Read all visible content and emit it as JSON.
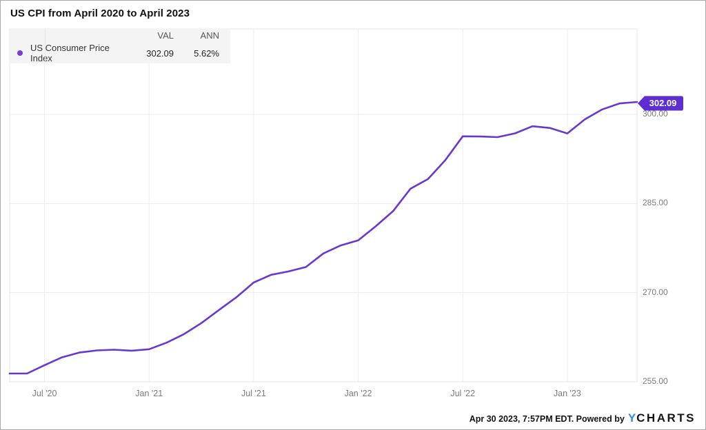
{
  "title": "US CPI from April 2020 to April 2023",
  "legend": {
    "val_header": "VAL",
    "ann_header": "ANN",
    "series_label": "US Consumer Price Index",
    "val": "302.09",
    "ann": "5.62%"
  },
  "end_value_label": "302.09",
  "footer": {
    "timestamp": "Apr 30 2023, 7:57PM EDT. Powered by",
    "logo_y": "Y",
    "logo_rest": "CHARTS"
  },
  "colors": {
    "line": "#6638d0",
    "badge": "#5e2ed2",
    "legend_dot": "#7c3ad9",
    "logo_blue": "#2e90d6",
    "grid": "#ececec",
    "plot_border": "#e6e6e6"
  },
  "chart_data": {
    "type": "line",
    "title": "US CPI from April 2020 to April 2023",
    "series_name": "US Consumer Price Index",
    "x": [
      "2020-04",
      "2020-05",
      "2020-06",
      "2020-07",
      "2020-08",
      "2020-09",
      "2020-10",
      "2020-11",
      "2020-12",
      "2021-01",
      "2021-02",
      "2021-03",
      "2021-04",
      "2021-05",
      "2021-06",
      "2021-07",
      "2021-08",
      "2021-09",
      "2021-10",
      "2021-11",
      "2021-12",
      "2022-01",
      "2022-02",
      "2022-03",
      "2022-04",
      "2022-05",
      "2022-06",
      "2022-07",
      "2022-08",
      "2022-09",
      "2022-10",
      "2022-11",
      "2022-12",
      "2023-01",
      "2023-02",
      "2023-03",
      "2023-04"
    ],
    "values": [
      256.39,
      256.39,
      257.8,
      259.1,
      259.92,
      260.28,
      260.39,
      260.23,
      260.47,
      261.58,
      263.01,
      264.88,
      267.05,
      269.2,
      271.7,
      273.0,
      273.57,
      274.31,
      276.59,
      277.95,
      278.8,
      281.15,
      283.72,
      287.5,
      289.11,
      292.3,
      296.31,
      296.28,
      296.17,
      296.81,
      298.01,
      297.71,
      296.8,
      299.17,
      300.84,
      301.84,
      302.09
    ],
    "final_value": 302.09,
    "annualized_return_pct": 5.62,
    "x_ticks": [
      {
        "label": "Jul '20",
        "index": 2
      },
      {
        "label": "Jan '21",
        "index": 8
      },
      {
        "label": "Jul '21",
        "index": 14
      },
      {
        "label": "Jan '22",
        "index": 20
      },
      {
        "label": "Jul '22",
        "index": 26
      },
      {
        "label": "Jan '23",
        "index": 32
      }
    ],
    "y_ticks": [
      {
        "label": "300.00",
        "value": 300
      },
      {
        "label": "285.00",
        "value": 285
      },
      {
        "label": "270.00",
        "value": 270
      },
      {
        "label": "255.00",
        "value": 255
      }
    ],
    "ylim": [
      255,
      314.4
    ],
    "grid": true,
    "legend_position": "top-left"
  }
}
